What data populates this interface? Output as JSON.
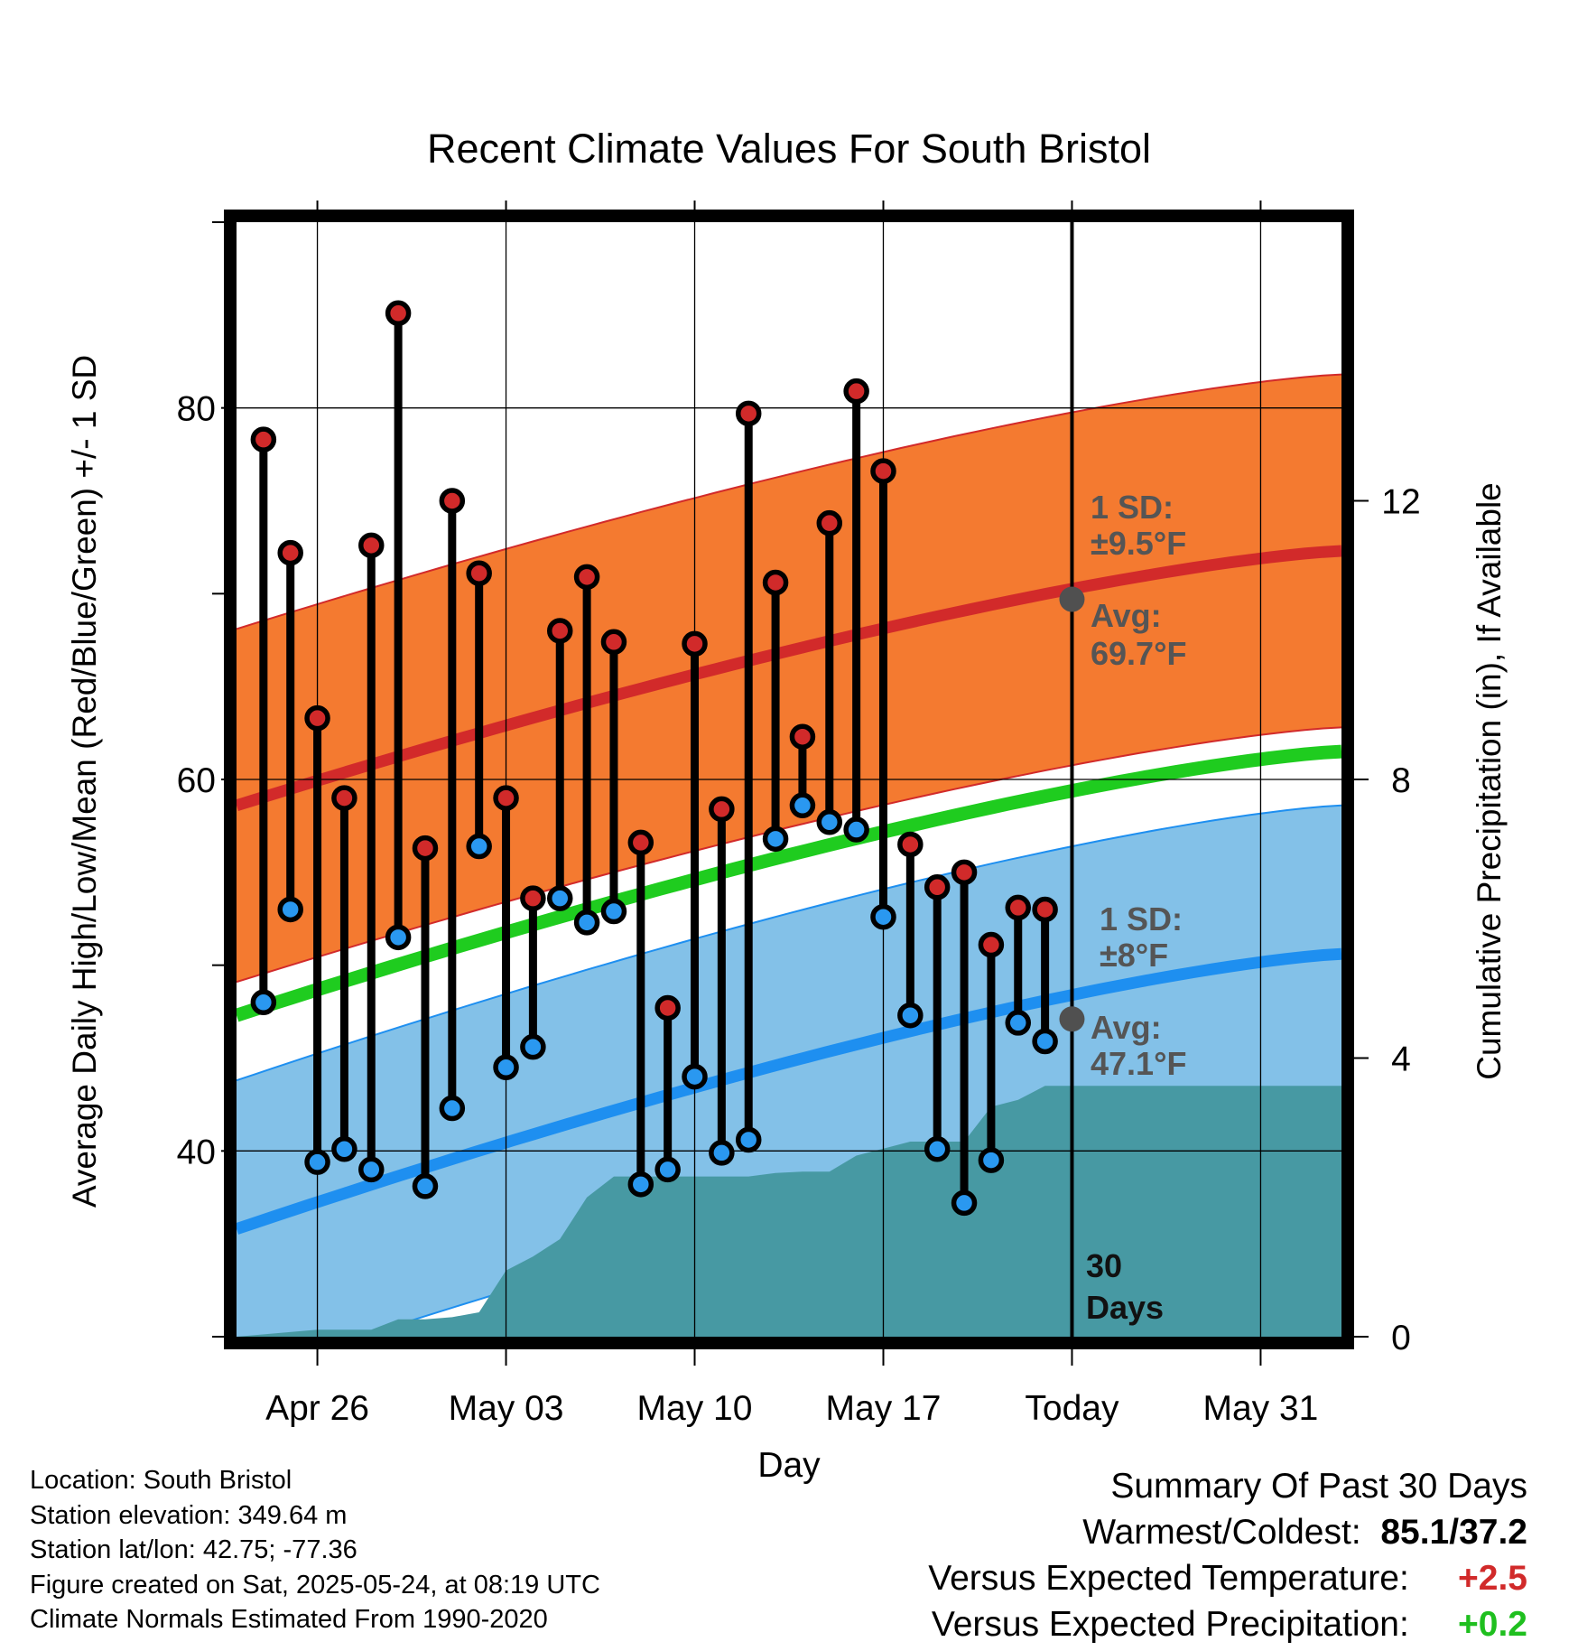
{
  "chart_data": {
    "type": "line",
    "title": "Recent Climate Values For South Bristol",
    "xlabel": "Day",
    "ylabel": "Average Daily High/Low/Mean (Red/Blue/Green) +/- 1 SD",
    "y2label": "Cumulative Precipitation (in), If Available",
    "ylim": [
      30,
      90
    ],
    "y2lim": [
      0,
      16
    ],
    "yticks": [
      40,
      60,
      80
    ],
    "y2ticks": [
      0,
      4,
      8,
      12
    ],
    "xlim": [
      "2025-04-23",
      "2025-06-03"
    ],
    "xticks": [
      {
        "date": "2025-04-26",
        "label": "Apr 26"
      },
      {
        "date": "2025-05-03",
        "label": "May 03"
      },
      {
        "date": "2025-05-10",
        "label": "May 10"
      },
      {
        "date": "2025-05-17",
        "label": "May 17"
      },
      {
        "date": "2025-05-24",
        "label": "Today"
      },
      {
        "date": "2025-05-31",
        "label": "May 31"
      }
    ],
    "grid": true,
    "dates": [
      "2025-04-24",
      "2025-04-25",
      "2025-04-26",
      "2025-04-27",
      "2025-04-28",
      "2025-04-29",
      "2025-04-30",
      "2025-05-01",
      "2025-05-02",
      "2025-05-03",
      "2025-05-04",
      "2025-05-05",
      "2025-05-06",
      "2025-05-07",
      "2025-05-08",
      "2025-05-09",
      "2025-05-10",
      "2025-05-11",
      "2025-05-12",
      "2025-05-13",
      "2025-05-14",
      "2025-05-15",
      "2025-05-16",
      "2025-05-17",
      "2025-05-18",
      "2025-05-19",
      "2025-05-20",
      "2025-05-21",
      "2025-05-22",
      "2025-05-23"
    ],
    "daily_high": [
      78.3,
      72.2,
      63.3,
      59.0,
      72.6,
      85.1,
      56.3,
      75.0,
      71.1,
      59.0,
      53.6,
      68.0,
      70.9,
      67.4,
      56.6,
      47.7,
      67.3,
      58.4,
      79.7,
      70.6,
      62.3,
      73.8,
      80.9,
      76.6,
      56.5,
      54.2,
      55.0,
      51.1,
      53.1,
      53.0
    ],
    "daily_low": [
      48.0,
      53.0,
      39.4,
      40.1,
      39.0,
      51.5,
      38.1,
      42.3,
      56.4,
      44.5,
      45.6,
      53.6,
      52.3,
      52.9,
      38.2,
      39.0,
      44.0,
      39.9,
      40.6,
      56.8,
      58.6,
      57.7,
      57.3,
      52.6,
      47.3,
      40.1,
      37.2,
      39.5,
      46.9,
      45.9
    ],
    "normal_high": {
      "start": 58.6,
      "end": 72.3,
      "sd": 9.5
    },
    "normal_low": {
      "start": 35.8,
      "end": 50.6,
      "sd": 8.0
    },
    "normal_mean": {
      "start": 47.3,
      "end": 61.5
    },
    "precip_dates": [
      "2025-04-23",
      "2025-04-26",
      "2025-04-28",
      "2025-04-29",
      "2025-04-30",
      "2025-05-01",
      "2025-05-02",
      "2025-05-03",
      "2025-05-04",
      "2025-05-05",
      "2025-05-06",
      "2025-05-07",
      "2025-05-08",
      "2025-05-09",
      "2025-05-10",
      "2025-05-11",
      "2025-05-12",
      "2025-05-13",
      "2025-05-14",
      "2025-05-15",
      "2025-05-16",
      "2025-05-17",
      "2025-05-18",
      "2025-05-19",
      "2025-05-20",
      "2025-05-21",
      "2025-05-22",
      "2025-05-23",
      "2025-05-24",
      "2025-06-03"
    ],
    "precip_cumulative": [
      0.0,
      0.1,
      0.1,
      0.25,
      0.25,
      0.28,
      0.35,
      0.95,
      1.15,
      1.4,
      2.0,
      2.3,
      2.3,
      2.3,
      2.3,
      2.3,
      2.3,
      2.35,
      2.37,
      2.37,
      2.6,
      2.7,
      2.8,
      2.8,
      2.8,
      3.3,
      3.4,
      3.6,
      3.6,
      3.6
    ],
    "annotations": {
      "high_sd_label": "1 SD:",
      "high_sd_value": "±9.5°F",
      "high_avg_label": "Avg:",
      "high_avg_value": "69.7°F",
      "low_sd_label": "1 SD:",
      "low_sd_value": "±8°F",
      "low_avg_label": "Avg:",
      "low_avg_value": "47.1°F",
      "today_high_avg": 69.7,
      "today_low_avg": 47.1,
      "window_line1": "30",
      "window_line2": "Days"
    },
    "colors": {
      "high_band": "#f47a30",
      "high_line": "#d22a2a",
      "low_band": "#83c1e8",
      "low_line": "#1e8ff0",
      "mean_line": "#1fcc1f",
      "precip": "#4799a3",
      "high_marker": "#d12a2a",
      "low_marker": "#2a98f0",
      "annotation": "#555555"
    }
  },
  "info": {
    "location": "Location: South Bristol",
    "elevation": "Station elevation: 349.64 m",
    "latlon": "Station lat/lon: 42.75; -77.36",
    "created": "Figure created on Sat, 2025-05-24, at 08:19 UTC",
    "normals": "Climate Normals Estimated From 1990-2020"
  },
  "summary": {
    "title": "Summary Of Past 30 Days",
    "warm_cold_label": "Warmest/Coldest:",
    "warm_cold_value": "85.1/37.2",
    "temp_label": "Versus Expected Temperature:",
    "temp_value": "+2.5",
    "precip_label": "Versus Expected Precipitation:",
    "precip_value": "+0.2"
  }
}
